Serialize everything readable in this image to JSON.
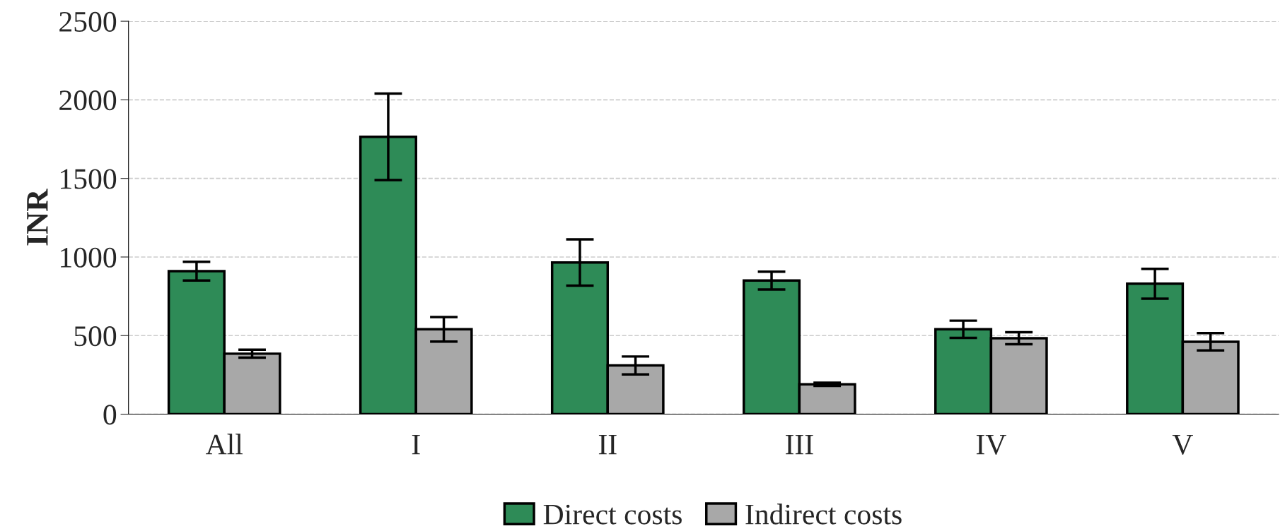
{
  "chart_data": {
    "type": "bar",
    "ylabel": "INR",
    "categories": [
      "All",
      "I",
      "II",
      "III",
      "IV",
      "V"
    ],
    "series": [
      {
        "name": "Direct costs",
        "color": "#2e8b57",
        "values": [
          910,
          1765,
          965,
          850,
          540,
          830
        ],
        "errors": [
          60,
          275,
          147,
          57,
          55,
          95
        ]
      },
      {
        "name": "Indirect costs",
        "color": "#a8a8a8",
        "values": [
          385,
          540,
          310,
          190,
          483,
          461
        ],
        "errors": [
          25,
          78,
          57,
          10,
          38,
          55
        ]
      }
    ],
    "ylim": [
      0,
      2500
    ],
    "yticks": [
      0,
      500,
      1000,
      1500,
      2000,
      2500
    ],
    "grid": "y",
    "legend": "bottom"
  }
}
